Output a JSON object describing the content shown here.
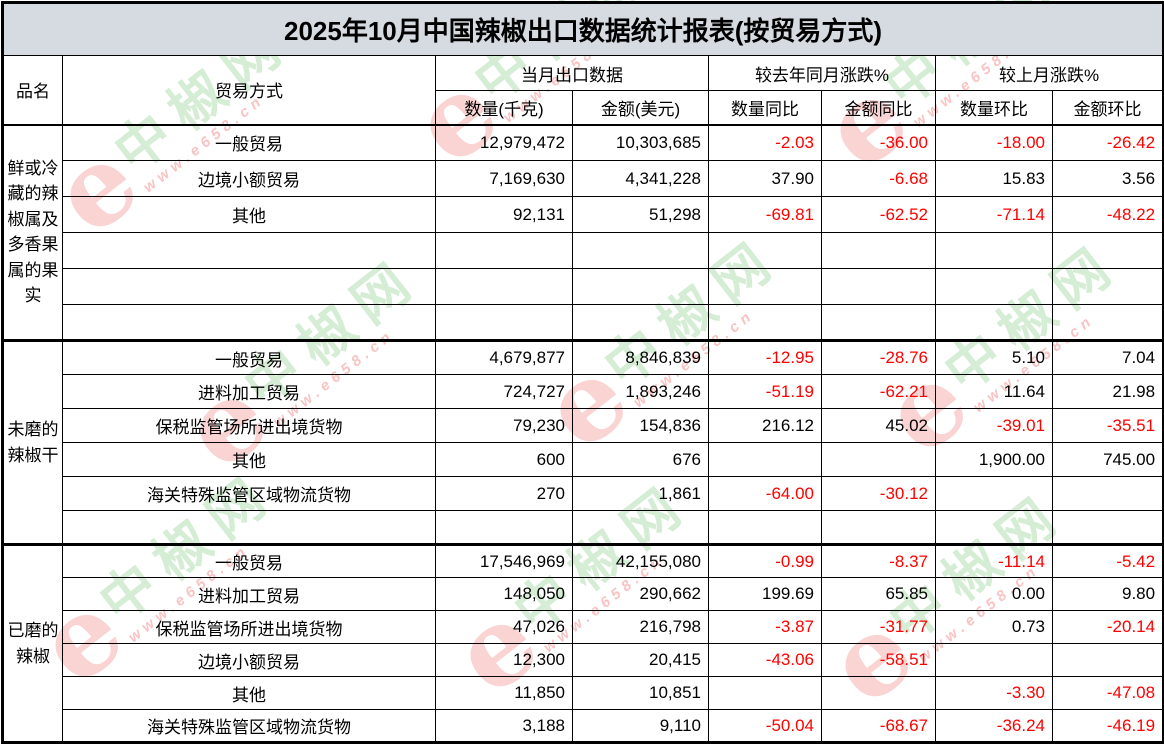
{
  "title": "2025年10月中国辣椒出口数据统计报表(按贸易方式)",
  "header": {
    "col_product": "品名",
    "col_trade": "贸易方式",
    "group_current": "当月出口数据",
    "group_yoy": "较去年同月涨跌%",
    "group_mom": "较上月涨跌%",
    "sub_qty": "数量(千克)",
    "sub_amount": "金额(美元)",
    "sub_qty_yoy": "数量同比",
    "sub_amount_yoy": "金额同比",
    "sub_qty_mom": "数量环比",
    "sub_amount_mom": "金额环比"
  },
  "colors": {
    "negative_value": "#FF0000",
    "positive_value": "#000000",
    "title_background": "#D6DBE2",
    "border": "#000000",
    "watermark_green": "#80C780",
    "watermark_pink": "#EE7676"
  },
  "watermark": {
    "logo": "e",
    "brand": "中椒网",
    "url": "www.e658.cn"
  },
  "sections": [
    {
      "product": "鲜或冷藏的辣椒属及多香果属的果实",
      "rows": [
        {
          "trade": "一般贸易",
          "qty": "12,979,472",
          "amount": "10,303,685",
          "qty_yoy": "-2.03",
          "amount_yoy": "-36.00",
          "qty_mom": "-18.00",
          "amount_mom": "-26.42"
        },
        {
          "trade": "边境小额贸易",
          "qty": "7,169,630",
          "amount": "4,341,228",
          "qty_yoy": "37.90",
          "amount_yoy": "-6.68",
          "qty_mom": "15.83",
          "amount_mom": "3.56"
        },
        {
          "trade": "其他",
          "qty": "92,131",
          "amount": "51,298",
          "qty_yoy": "-69.81",
          "amount_yoy": "-62.52",
          "qty_mom": "-71.14",
          "amount_mom": "-48.22"
        },
        {
          "trade": "",
          "qty": "",
          "amount": "",
          "qty_yoy": "",
          "amount_yoy": "",
          "qty_mom": "",
          "amount_mom": ""
        },
        {
          "trade": "",
          "qty": "",
          "amount": "",
          "qty_yoy": "",
          "amount_yoy": "",
          "qty_mom": "",
          "amount_mom": ""
        },
        {
          "trade": "",
          "qty": "",
          "amount": "",
          "qty_yoy": "",
          "amount_yoy": "",
          "qty_mom": "",
          "amount_mom": ""
        }
      ]
    },
    {
      "product": "未磨的辣椒干",
      "rows": [
        {
          "trade": "一般贸易",
          "qty": "4,679,877",
          "amount": "8,846,839",
          "qty_yoy": "-12.95",
          "amount_yoy": "-28.76",
          "qty_mom": "5.10",
          "amount_mom": "7.04"
        },
        {
          "trade": "进料加工贸易",
          "qty": "724,727",
          "amount": "1,893,246",
          "qty_yoy": "-51.19",
          "amount_yoy": "-62.21",
          "qty_mom": "11.64",
          "amount_mom": "21.98"
        },
        {
          "trade": "保税监管场所进出境货物",
          "qty": "79,230",
          "amount": "154,836",
          "qty_yoy": "216.12",
          "amount_yoy": "45.02",
          "qty_mom": "-39.01",
          "amount_mom": "-35.51"
        },
        {
          "trade": "其他",
          "qty": "600",
          "amount": "676",
          "qty_yoy": "",
          "amount_yoy": "",
          "qty_mom": "1,900.00",
          "amount_mom": "745.00"
        },
        {
          "trade": "海关特殊监管区域物流货物",
          "qty": "270",
          "amount": "1,861",
          "qty_yoy": "-64.00",
          "amount_yoy": "-30.12",
          "qty_mom": "",
          "amount_mom": ""
        },
        {
          "trade": "",
          "qty": "",
          "amount": "",
          "qty_yoy": "",
          "amount_yoy": "",
          "qty_mom": "",
          "amount_mom": ""
        }
      ]
    },
    {
      "product": "已磨的辣椒",
      "rows": [
        {
          "trade": "一般贸易",
          "qty": "17,546,969",
          "amount": "42,155,080",
          "qty_yoy": "-0.99",
          "amount_yoy": "-8.37",
          "qty_mom": "-11.14",
          "amount_mom": "-5.42"
        },
        {
          "trade": "进料加工贸易",
          "qty": "148,050",
          "amount": "290,662",
          "qty_yoy": "199.69",
          "amount_yoy": "65.85",
          "qty_mom": "0.00",
          "amount_mom": "9.80"
        },
        {
          "trade": "保税监管场所进出境货物",
          "qty": "47,026",
          "amount": "216,798",
          "qty_yoy": "-3.87",
          "amount_yoy": "-31.77",
          "qty_mom": "0.73",
          "amount_mom": "-20.14"
        },
        {
          "trade": "边境小额贸易",
          "qty": "12,300",
          "amount": "20,415",
          "qty_yoy": "-43.06",
          "amount_yoy": "-58.51",
          "qty_mom": "",
          "amount_mom": ""
        },
        {
          "trade": "其他",
          "qty": "11,850",
          "amount": "10,851",
          "qty_yoy": "",
          "amount_yoy": "",
          "qty_mom": "-3.30",
          "amount_mom": "-47.08"
        },
        {
          "trade": "海关特殊监管区域物流货物",
          "qty": "3,188",
          "amount": "9,110",
          "qty_yoy": "-50.04",
          "amount_yoy": "-68.67",
          "qty_mom": "-36.24",
          "amount_mom": "-46.19"
        }
      ]
    }
  ]
}
